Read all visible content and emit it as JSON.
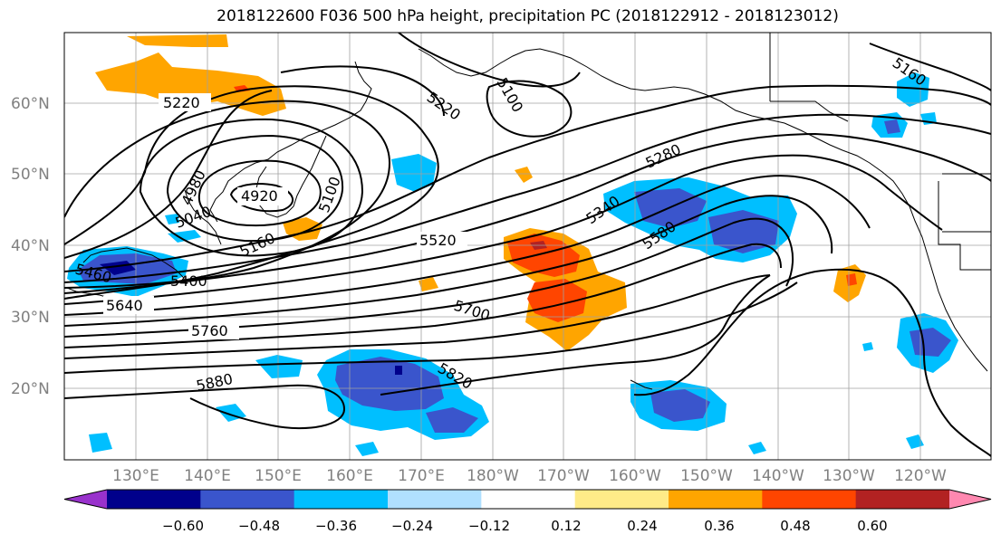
{
  "title": "2018122600 F036 500 hPa height, precipitation PC (2018122912 - 2018123012)",
  "lat_labels": [
    "60°N",
    "50°N",
    "40°N",
    "30°N",
    "20°N"
  ],
  "lon_labels": [
    "130°E",
    "140°E",
    "150°E",
    "160°E",
    "170°E",
    "180°W",
    "170°W",
    "160°W",
    "150°W",
    "140°W",
    "130°W",
    "120°W"
  ],
  "contour_labels": [
    "5220",
    "5220",
    "5100",
    "4920",
    "4980",
    "5040",
    "5100",
    "5160",
    "5280",
    "5340",
    "5520",
    "5580",
    "5460",
    "5400",
    "5640",
    "5700",
    "5760",
    "5820",
    "5880",
    "5160"
  ],
  "colorbar": {
    "colors": [
      "#9932cc",
      "#00008b",
      "#3a55cc",
      "#00bfff",
      "#b0e0ff",
      "#ffffff",
      "#ffeb88",
      "#ffa500",
      "#ff4500",
      "#b22222",
      "#ff88b0"
    ],
    "labels": [
      "−0.60",
      "−0.48",
      "−0.36",
      "−0.24",
      "−0.12",
      "0.12",
      "0.24",
      "0.36",
      "0.48",
      "0.60"
    ]
  }
}
